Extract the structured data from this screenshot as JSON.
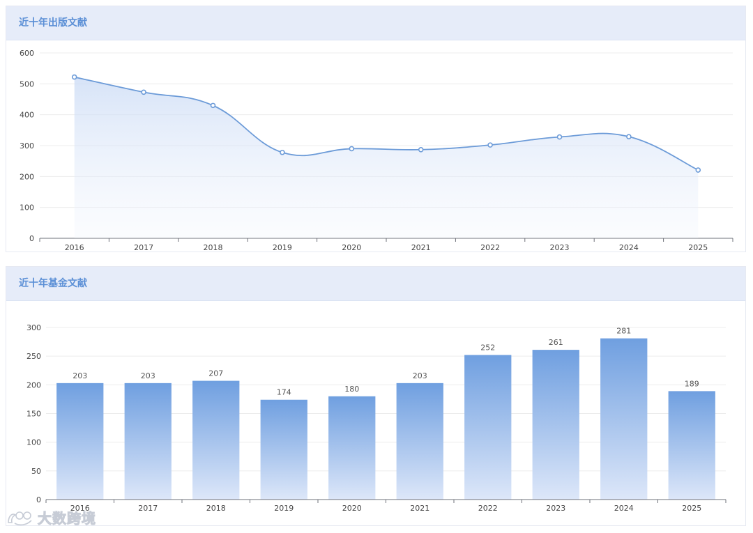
{
  "panels": {
    "publications_title": "近十年出版文献",
    "funding_title": "近十年基金文献"
  },
  "watermark": {
    "text": "大数跨境"
  },
  "chart_data": [
    {
      "type": "line",
      "title": "近十年出版文献",
      "categories": [
        "2016",
        "2017",
        "2018",
        "2019",
        "2020",
        "2021",
        "2022",
        "2023",
        "2024",
        "2025"
      ],
      "values": [
        522,
        473,
        430,
        278,
        290,
        287,
        302,
        328,
        329,
        221
      ],
      "yticks": [
        0,
        100,
        200,
        300,
        400,
        500,
        600
      ],
      "ylim": [
        0,
        600
      ],
      "smooth": true,
      "area_fill": true,
      "grid": true,
      "color": "#6c9bd8"
    },
    {
      "type": "bar",
      "title": "近十年基金文献",
      "categories": [
        "2016",
        "2017",
        "2018",
        "2019",
        "2020",
        "2021",
        "2022",
        "2023",
        "2024",
        "2025"
      ],
      "values": [
        203,
        203,
        207,
        174,
        180,
        203,
        252,
        261,
        281,
        189
      ],
      "yticks": [
        0,
        50,
        100,
        150,
        200,
        250,
        300
      ],
      "ylim": [
        0,
        300
      ],
      "data_labels": true,
      "grid": true,
      "color_top": "#6f9fe0",
      "color_bottom": "#dde7f9"
    }
  ]
}
